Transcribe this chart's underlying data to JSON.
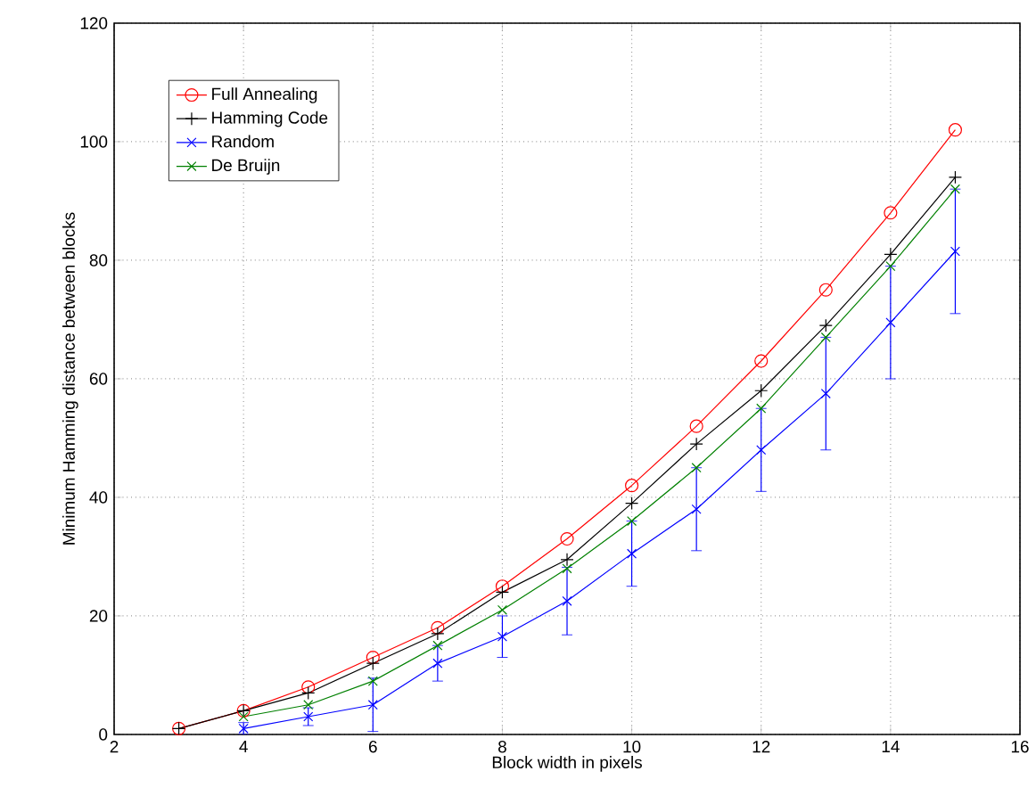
{
  "chart_data": {
    "type": "line",
    "xlabel": "Block width in pixels",
    "ylabel": "Minimum Hamming distance between blocks",
    "xlim": [
      2,
      16
    ],
    "xticks": [
      2,
      4,
      6,
      8,
      10,
      12,
      14,
      16
    ],
    "ylim": [
      0,
      120
    ],
    "yticks": [
      0,
      20,
      40,
      60,
      80,
      100,
      120
    ],
    "grid": true,
    "legend": "top left",
    "series": [
      {
        "name": "Full Annealing",
        "color": "#ff0000",
        "marker": "circle",
        "x": [
          3,
          4,
          5,
          6,
          7,
          8,
          9,
          10,
          11,
          12,
          13,
          14,
          15
        ],
        "values": [
          1,
          4,
          8,
          13,
          18,
          25,
          33,
          42,
          52,
          63,
          75,
          88,
          102
        ]
      },
      {
        "name": "Hamming Code",
        "color": "#000000",
        "marker": "plus",
        "x": [
          3,
          4,
          5,
          6,
          7,
          8,
          9,
          10,
          11,
          12,
          13,
          14,
          15
        ],
        "values": [
          1,
          4,
          7,
          12,
          17,
          24,
          29.5,
          39,
          49,
          58,
          69,
          81,
          94
        ]
      },
      {
        "name": "Random",
        "color": "#0000ff",
        "marker": "cross",
        "x": [
          4,
          5,
          6,
          7,
          8,
          9,
          10,
          11,
          12,
          13,
          14,
          15
        ],
        "values": [
          1,
          3,
          5,
          12,
          16.5,
          22.5,
          30.5,
          38,
          48,
          57.5,
          69.5,
          81.5
        ],
        "errors": [
          1,
          1.5,
          4.5,
          3,
          3.5,
          5.7,
          5.5,
          7,
          7,
          9.5,
          9.5,
          10.5
        ]
      },
      {
        "name": "De Bruijn",
        "color": "#008000",
        "marker": "cross",
        "x": [
          4,
          5,
          6,
          7,
          8,
          9,
          10,
          11,
          12,
          13,
          14,
          15
        ],
        "values": [
          3,
          5,
          9,
          15,
          21,
          28,
          36,
          45,
          55,
          67,
          79,
          92
        ]
      }
    ]
  }
}
